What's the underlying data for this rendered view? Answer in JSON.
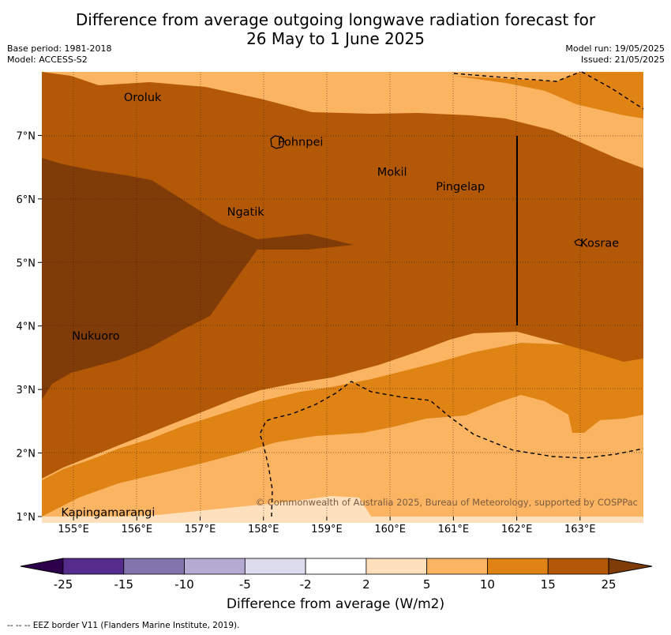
{
  "title": {
    "line1": "Difference from average outgoing longwave radiation forecast for",
    "line2": "26 May to 1 June 2025"
  },
  "meta": {
    "base_period": "Base period: 1981-2018",
    "model": "Model: ACCESS-S2",
    "model_run": "Model run: 19/05/2025",
    "issued": "Issued: 21/05/2025"
  },
  "map": {
    "lon_range": [
      154.5,
      164.0
    ],
    "lat_range": [
      1.0,
      8.0
    ],
    "lon_ticks": [
      "155°E",
      "156°E",
      "157°E",
      "158°E",
      "159°E",
      "160°E",
      "161°E",
      "162°E",
      "163°E"
    ],
    "lat_ticks": [
      "1°N",
      "2°N",
      "3°N",
      "4°N",
      "5°N",
      "6°N",
      "7°N"
    ],
    "copyright": "© Commonwealth of Australia 2025, Bureau of Meteorology, supported by COSPPac",
    "places": [
      {
        "name": "Oroluk",
        "lon": 155.77,
        "lat": 7.6
      },
      {
        "name": "Pohnpei",
        "lon": 158.2,
        "lat": 6.9
      },
      {
        "name": "Mokil",
        "lon": 159.77,
        "lat": 6.43
      },
      {
        "name": "Pingelap",
        "lon": 160.7,
        "lat": 6.2
      },
      {
        "name": "Ngatik",
        "lon": 157.4,
        "lat": 5.8
      },
      {
        "name": "Kosrae",
        "lon": 162.98,
        "lat": 5.31
      },
      {
        "name": "Nukuoro",
        "lon": 154.95,
        "lat": 3.85
      },
      {
        "name": "Kapingamarangi",
        "lon": 154.78,
        "lat": 1.07
      }
    ]
  },
  "colorbar": {
    "ticks": [
      "-25",
      "-15",
      "-10",
      "-5",
      "-2",
      "2",
      "5",
      "10",
      "15",
      "25"
    ],
    "colors": [
      "#552b8c",
      "#8474ad",
      "#b4aad2",
      "#dcdcee",
      "#ffffff",
      "#fee1bc",
      "#fbb562",
      "#e08315",
      "#b35806",
      "#7f3b08"
    ],
    "label": "Difference from average (W/m2)"
  },
  "footnote": "--  --  -- EEZ border V11 (Flanders Marine Institute, 2019).",
  "colors": {
    "band_2_5": "#fee1bc",
    "band_5_10": "#fbb562",
    "band_10_15": "#e08315",
    "band_15_25": "#b35806",
    "band_gt25": "#7f3b08"
  }
}
